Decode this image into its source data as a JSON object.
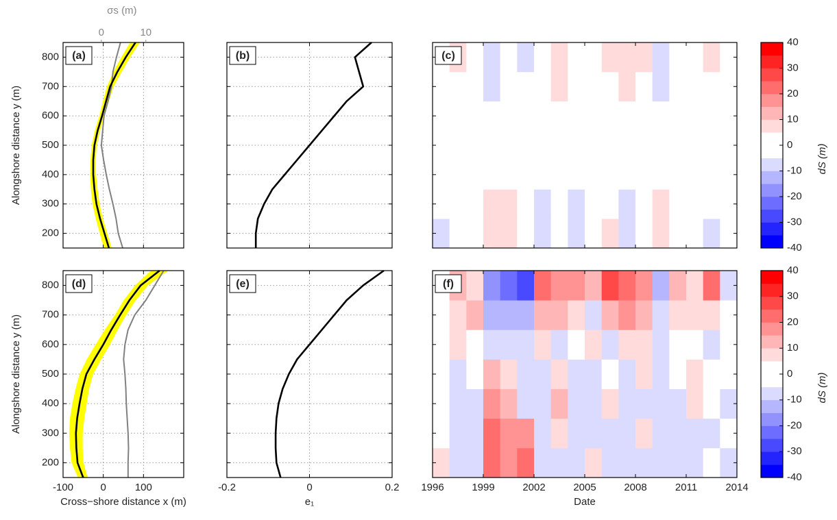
{
  "chart_data": [
    {
      "type": "line",
      "label": "(a)",
      "ylabel": "Alongshore distance y (m)",
      "xlim": [
        -100,
        200
      ],
      "xticks": [
        -100,
        0,
        100
      ],
      "xtick_labels": false,
      "x2lim": [
        -8.6,
        18.5
      ],
      "x2ticks": [
        0,
        10
      ],
      "x2label": "σs (m)",
      "x2tick_labels": true,
      "ylim": [
        150,
        850
      ],
      "yticks": [
        200,
        300,
        400,
        500,
        600,
        700,
        800
      ],
      "ytick_labels": true,
      "grid": true,
      "y": [
        150,
        200,
        250,
        300,
        350,
        400,
        450,
        500,
        550,
        600,
        650,
        700,
        750,
        800,
        850
      ],
      "band": {
        "color": "#ffff00",
        "lower": [
          2,
          -8,
          -18,
          -26,
          -30,
          -32,
          -31,
          -28,
          -20,
          -9,
          0,
          10,
          26,
          46,
          68
        ],
        "upper": [
          20,
          9,
          -2,
          -10,
          -15,
          -19,
          -20,
          -17,
          -9,
          2,
          13,
          25,
          45,
          66,
          90
        ]
      },
      "series": [
        {
          "color": "#808080",
          "axis": "x2",
          "values": [
            4.8,
            3.8,
            3.3,
            2.6,
            1.8,
            1.1,
            0.5,
            0.0,
            0.3,
            0.6,
            1.5,
            2.3,
            2.6,
            3.4,
            4.3
          ]
        },
        {
          "color": "#000000",
          "values": [
            14,
            3,
            -8,
            -17,
            -22,
            -25,
            -25,
            -22,
            -14,
            -3,
            7,
            17,
            35,
            56,
            80
          ]
        }
      ]
    },
    {
      "type": "line",
      "label": "(b)",
      "xlim": [
        -0.2,
        0.2
      ],
      "xticks": [
        -0.2,
        0,
        0.2
      ],
      "xtick_labels": false,
      "ylim": [
        150,
        850
      ],
      "yticks": [
        200,
        300,
        400,
        500,
        600,
        700,
        800
      ],
      "ytick_labels": false,
      "grid": true,
      "y": [
        150,
        200,
        250,
        300,
        350,
        400,
        450,
        500,
        550,
        600,
        650,
        700,
        750,
        800,
        850
      ],
      "series": [
        {
          "color": "#000000",
          "values": [
            -0.13,
            -0.13,
            -0.125,
            -0.11,
            -0.09,
            -0.06,
            -0.03,
            0.0,
            0.03,
            0.06,
            0.09,
            0.13,
            0.12,
            0.11,
            0.15
          ]
        }
      ]
    },
    {
      "type": "heatmap",
      "label": "(c)",
      "xlim": [
        1996,
        2014
      ],
      "xticks": [
        1996,
        1999,
        2002,
        2005,
        2008,
        2011,
        2014
      ],
      "xtick_labels": false,
      "ylim": [
        150,
        850
      ],
      "yticks": [
        200,
        300,
        400,
        500,
        600,
        700,
        800
      ],
      "ytick_labels": false,
      "x_edges": [
        1996,
        1997,
        1998,
        1999,
        2000,
        2001,
        2002,
        2003,
        2004,
        2005,
        2006,
        2007,
        2008,
        2009,
        2010,
        2011,
        2012,
        2013,
        2014
      ],
      "y_edges": [
        150,
        250,
        350,
        450,
        550,
        650,
        750,
        850
      ],
      "z": [
        [
          -6,
          0,
          0,
          8,
          6,
          0,
          -6,
          0,
          -6,
          0,
          6,
          -6,
          0,
          8,
          0,
          0,
          -6,
          0
        ],
        [
          0,
          0,
          0,
          6,
          6,
          0,
          -6,
          0,
          -6,
          0,
          0,
          -6,
          0,
          6,
          0,
          0,
          0,
          0
        ],
        [
          0,
          0,
          0,
          0,
          0,
          0,
          0,
          0,
          0,
          0,
          0,
          0,
          0,
          0,
          0,
          0,
          0,
          0
        ],
        [
          0,
          0,
          0,
          0,
          0,
          0,
          0,
          0,
          0,
          0,
          0,
          0,
          0,
          0,
          0,
          0,
          0,
          0
        ],
        [
          0,
          0,
          0,
          0,
          0,
          0,
          0,
          0,
          0,
          0,
          0,
          0,
          0,
          0,
          0,
          0,
          0,
          0
        ],
        [
          0,
          0,
          0,
          -8,
          0,
          0,
          0,
          6,
          0,
          0,
          0,
          6,
          0,
          -6,
          0,
          0,
          0,
          0
        ],
        [
          0,
          8,
          0,
          -8,
          0,
          -6,
          0,
          6,
          0,
          0,
          6,
          8,
          6,
          -6,
          0,
          0,
          6,
          0
        ]
      ],
      "levels": [
        -40,
        -35,
        -30,
        -25,
        -20,
        -15,
        -10,
        -5,
        5,
        10,
        15,
        20,
        25,
        30,
        35,
        40
      ],
      "colors": [
        "#0000ff",
        "#2424ff",
        "#4949ff",
        "#6d6dff",
        "#9292ff",
        "#b6b6ff",
        "#dbdbff",
        "#ffffff",
        "#ffdbdb",
        "#ffb6b6",
        "#ff9292",
        "#ff6d6d",
        "#ff4949",
        "#ff2424",
        "#ff0000"
      ],
      "clim": [
        -40,
        40
      ],
      "cticks": [
        -40,
        -30,
        -20,
        -10,
        0,
        10,
        20,
        30,
        40
      ],
      "clabel": "dS (m)"
    },
    {
      "type": "line",
      "label": "(d)",
      "ylabel": "Alongshore distance y (m)",
      "xlabel": "Cross−shore distance x (m)",
      "xlim": [
        -100,
        200
      ],
      "xticks": [
        -100,
        0,
        100
      ],
      "xtick_labels": true,
      "x2lim": [
        -8.6,
        18.5
      ],
      "ylim": [
        150,
        850
      ],
      "yticks": [
        200,
        300,
        400,
        500,
        600,
        700,
        800
      ],
      "ytick_labels": true,
      "grid": true,
      "y": [
        150,
        200,
        250,
        300,
        350,
        400,
        450,
        500,
        550,
        600,
        650,
        700,
        750,
        800,
        850
      ],
      "band": {
        "color": "#ffff00",
        "lower": [
          -62,
          -78,
          -82,
          -84,
          -82,
          -76,
          -68,
          -58,
          -40,
          -18,
          5,
          30,
          52,
          80,
          120
        ],
        "upper": [
          -40,
          -50,
          -52,
          -52,
          -48,
          -42,
          -36,
          -26,
          -6,
          16,
          35,
          56,
          80,
          110,
          160
        ]
      },
      "series": [
        {
          "color": "#808080",
          "axis": "x2",
          "values": [
            6.0,
            6.0,
            6.1,
            6.0,
            5.8,
            5.6,
            5.5,
            5.3,
            5.0,
            5.3,
            6.0,
            7.5,
            10,
            12,
            14
          ]
        },
        {
          "color": "#000000",
          "values": [
            -50,
            -64,
            -67,
            -68,
            -65,
            -59,
            -52,
            -42,
            -22,
            0,
            20,
            42,
            65,
            93,
            140
          ]
        }
      ]
    },
    {
      "type": "line",
      "label": "(e)",
      "xlabel": "e₁",
      "xlim": [
        -0.2,
        0.2
      ],
      "xticks": [
        -0.2,
        0,
        0.2
      ],
      "xtick_labels": true,
      "ylim": [
        150,
        850
      ],
      "yticks": [
        200,
        300,
        400,
        500,
        600,
        700,
        800
      ],
      "ytick_labels": false,
      "grid": true,
      "y": [
        150,
        200,
        250,
        300,
        350,
        400,
        450,
        500,
        550,
        600,
        650,
        700,
        750,
        800,
        850
      ],
      "series": [
        {
          "color": "#000000",
          "values": [
            -0.07,
            -0.08,
            -0.082,
            -0.082,
            -0.08,
            -0.075,
            -0.065,
            -0.05,
            -0.03,
            0.0,
            0.03,
            0.06,
            0.09,
            0.13,
            0.18
          ]
        }
      ]
    },
    {
      "type": "heatmap",
      "label": "(f)",
      "xlabel": "Date",
      "xlim": [
        1996,
        2014
      ],
      "xticks": [
        1996,
        1999,
        2002,
        2005,
        2008,
        2011,
        2014
      ],
      "xtick_labels": true,
      "ylim": [
        150,
        850
      ],
      "yticks": [
        200,
        300,
        400,
        500,
        600,
        700,
        800
      ],
      "ytick_labels": false,
      "x_edges": [
        1996,
        1997,
        1998,
        1999,
        2000,
        2001,
        2002,
        2003,
        2004,
        2005,
        2006,
        2007,
        2008,
        2009,
        2010,
        2011,
        2012,
        2013,
        2014
      ],
      "y_edges": [
        150,
        250,
        350,
        450,
        550,
        650,
        750,
        850
      ],
      "z": [
        [
          6,
          -6,
          -6,
          20,
          15,
          22,
          -6,
          -6,
          -6,
          6,
          -6,
          -6,
          -6,
          -6,
          -6,
          -6,
          0,
          -6
        ],
        [
          0,
          -6,
          -6,
          22,
          15,
          18,
          -8,
          8,
          -6,
          -8,
          -6,
          -6,
          8,
          -6,
          -6,
          -6,
          -6,
          0
        ],
        [
          0,
          -6,
          -6,
          18,
          10,
          -6,
          -6,
          12,
          -6,
          -6,
          6,
          -6,
          -6,
          -6,
          -6,
          6,
          0,
          -6
        ],
        [
          0,
          -6,
          0,
          10,
          6,
          -6,
          -6,
          6,
          -6,
          -6,
          0,
          -6,
          6,
          -6,
          0,
          6,
          0,
          0
        ],
        [
          0,
          6,
          0,
          -8,
          -6,
          -6,
          8,
          -6,
          0,
          6,
          -6,
          8,
          6,
          -6,
          0,
          0,
          -6,
          0
        ],
        [
          0,
          8,
          12,
          -15,
          -12,
          -12,
          12,
          10,
          8,
          -8,
          12,
          15,
          10,
          -10,
          8,
          6,
          6,
          0
        ],
        [
          0,
          10,
          8,
          -20,
          -22,
          -30,
          20,
          15,
          18,
          12,
          25,
          20,
          15,
          -15,
          12,
          8,
          20,
          -8
        ]
      ],
      "levels": [
        -40,
        -35,
        -30,
        -25,
        -20,
        -15,
        -10,
        -5,
        5,
        10,
        15,
        20,
        25,
        30,
        35,
        40
      ],
      "colors": [
        "#0000ff",
        "#2424ff",
        "#4949ff",
        "#6d6dff",
        "#9292ff",
        "#b6b6ff",
        "#dbdbff",
        "#ffffff",
        "#ffdbdb",
        "#ffb6b6",
        "#ff9292",
        "#ff6d6d",
        "#ff4949",
        "#ff2424",
        "#ff0000"
      ],
      "clim": [
        -40,
        40
      ],
      "cticks": [
        -40,
        -30,
        -20,
        -10,
        0,
        10,
        20,
        30,
        40
      ],
      "clabel": "dS (m)"
    }
  ]
}
